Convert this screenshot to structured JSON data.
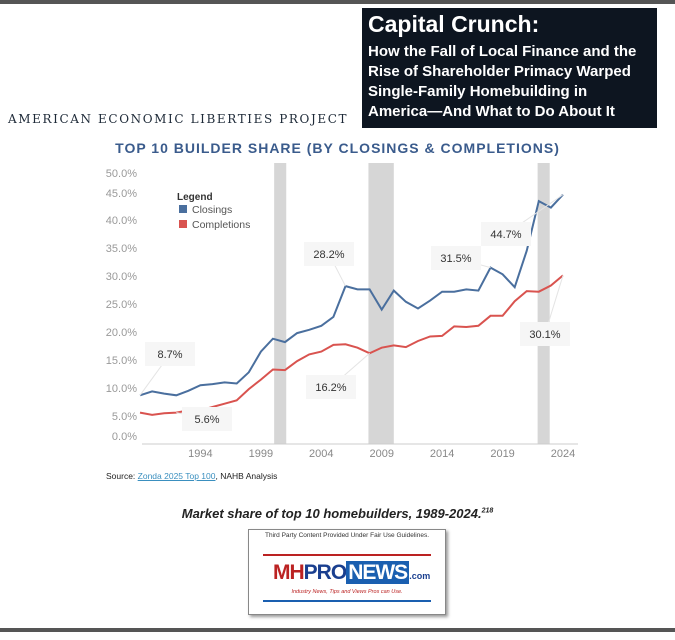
{
  "header": {
    "title": "Capital Crunch:",
    "subtitle_lines": [
      "How the Fall of Local Finance and the",
      "Rise of Shareholder Primacy Warped",
      "Single-Family Homebuilding in",
      "America—And What to Do About It"
    ],
    "org": "AMERICAN ECONOMIC LIBERTIES PROJECT"
  },
  "source": {
    "prefix": "Source: ",
    "link": "Zonda 2025 Top 100",
    "suffix": ", NAHB Analysis"
  },
  "caption": {
    "text": "Market share of top 10 homebuilders, 1989-2024.",
    "ref": "218"
  },
  "logo": {
    "fair_use": "Third Party Content Provided Under Fair Use Guidelines.",
    "mh": "MH",
    "pro": "PRO",
    "news": "NEWS",
    ".com": ".com",
    "tagline": "Industry News, Tips and Views Pros can Use."
  },
  "colors": {
    "closings": "#4a6f9e",
    "completions": "#d9534f",
    "recession": "#d6d6d6"
  },
  "chart_data": {
    "type": "line",
    "title": "TOP 10 BUILDER SHARE (BY CLOSINGS & COMPLETIONS)",
    "xlabel": "",
    "ylabel": "",
    "x": [
      1989,
      1990,
      1991,
      1992,
      1993,
      1994,
      1995,
      1996,
      1997,
      1998,
      1999,
      2000,
      2001,
      2002,
      2003,
      2004,
      2005,
      2006,
      2007,
      2008,
      2009,
      2010,
      2011,
      2012,
      2013,
      2014,
      2015,
      2016,
      2017,
      2018,
      2019,
      2020,
      2021,
      2022,
      2023,
      2024
    ],
    "series": [
      {
        "name": "Closings",
        "values": [
          8.7,
          9.4,
          9.0,
          8.7,
          9.5,
          10.5,
          10.7,
          11.0,
          10.8,
          12.8,
          16.5,
          18.8,
          18.2,
          19.8,
          20.4,
          21.1,
          22.7,
          28.2,
          27.6,
          27.6,
          24.0,
          27.4,
          25.4,
          24.2,
          25.6,
          27.2,
          27.2,
          27.6,
          27.4,
          31.5,
          30.3,
          28.0,
          34.5,
          43.5,
          42.3,
          44.7
        ]
      },
      {
        "name": "Completions",
        "values": [
          5.6,
          5.2,
          5.5,
          5.6,
          6.0,
          6.0,
          6.6,
          7.2,
          7.8,
          9.8,
          11.5,
          13.3,
          13.2,
          14.8,
          16.0,
          16.5,
          17.7,
          17.8,
          17.2,
          16.2,
          17.2,
          17.6,
          17.3,
          18.4,
          19.2,
          19.3,
          21.0,
          20.9,
          21.1,
          22.9,
          22.9,
          25.5,
          27.3,
          27.2,
          28.3,
          30.1
        ]
      }
    ],
    "yticks": [
      "0.0%",
      "5.0%",
      "10.0%",
      "15.0%",
      "20.0%",
      "25.0%",
      "30.0%",
      "35.0%",
      "40.0%",
      "45.0%",
      "50.0%"
    ],
    "ytick_values": [
      0,
      5,
      10,
      15,
      20,
      25,
      30,
      35,
      40,
      45,
      50
    ],
    "xticks": [
      "1994",
      "1999",
      "2004",
      "2009",
      "2014",
      "2019",
      "2024"
    ],
    "xtick_values": [
      1994,
      1999,
      2004,
      2009,
      2014,
      2019,
      2024
    ],
    "ylim": [
      0,
      50
    ],
    "xlim": [
      1989,
      2024
    ],
    "recessions": [
      [
        2000.1,
        2001.1
      ],
      [
        2007.9,
        2010.0
      ],
      [
        2021.9,
        2022.9
      ]
    ],
    "legend": {
      "title": "Legend",
      "placement": "top-left",
      "items": [
        "Closings",
        "Completions"
      ]
    },
    "annotations": [
      {
        "text": "8.7%",
        "series": "Closings",
        "x": 1989
      },
      {
        "text": "5.6%",
        "series": "Completions",
        "x": 1992
      },
      {
        "text": "28.2%",
        "series": "Closings",
        "x": 2006
      },
      {
        "text": "16.2%",
        "series": "Completions",
        "x": 2008
      },
      {
        "text": "31.5%",
        "series": "Closings",
        "x": 2018
      },
      {
        "text": "44.7%",
        "series": "Closings",
        "x": 2024
      },
      {
        "text": "30.1%",
        "series": "Completions",
        "x": 2024
      }
    ],
    "grid": false
  }
}
